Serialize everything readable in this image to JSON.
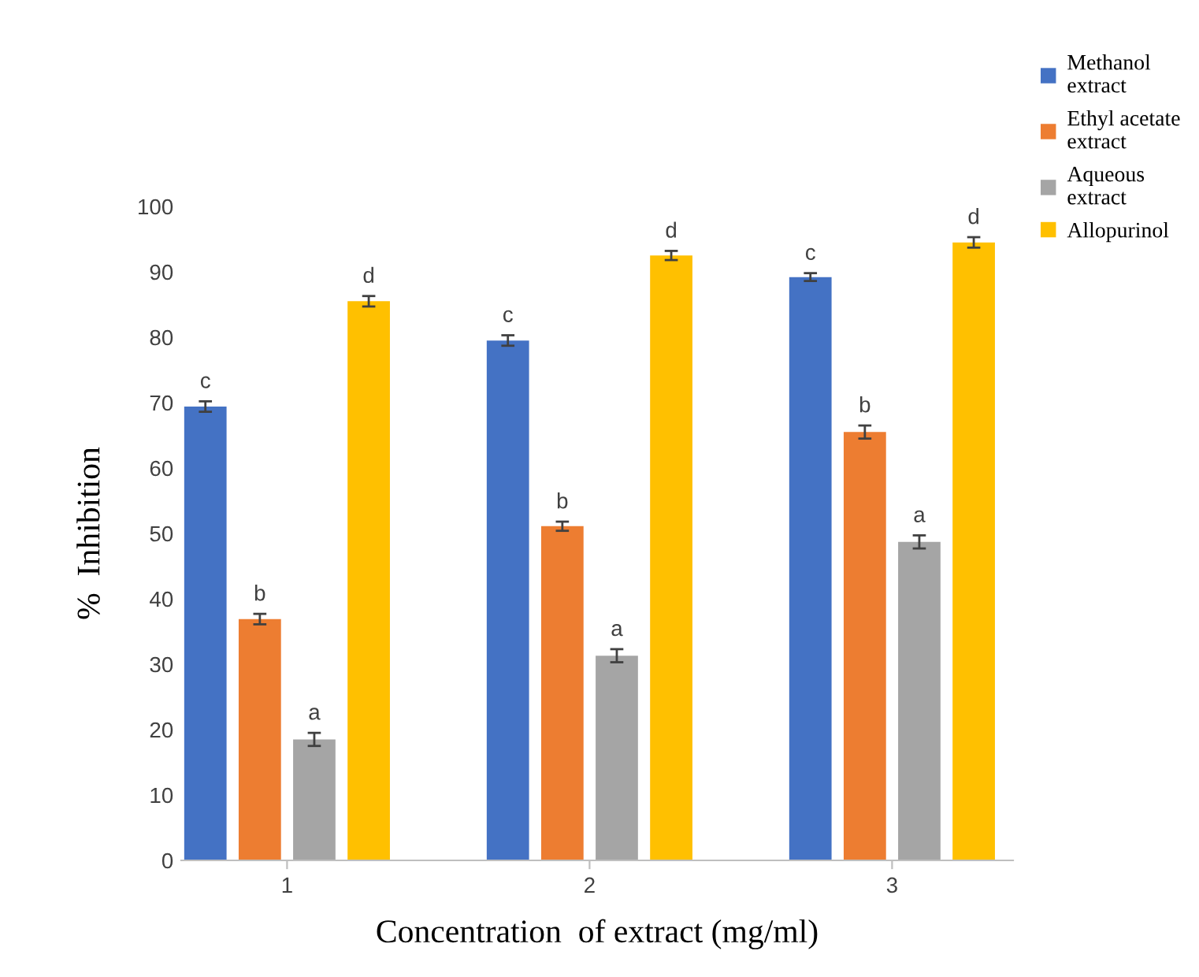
{
  "chart_data": {
    "type": "bar",
    "xlabel": "Concentration  of extract (mg/ml)",
    "ylabel": "%  Inhibition",
    "categories": [
      "1",
      "2",
      "3"
    ],
    "series": [
      {
        "name": "Methanol\nextract",
        "color": "#4472c4",
        "values": [
          69.4,
          79.5,
          89.2
        ],
        "errors": [
          0.8,
          0.8,
          0.6
        ]
      },
      {
        "name": "Ethyl acetate\nextract",
        "color": "#ed7d31",
        "values": [
          36.9,
          51.1,
          65.5
        ],
        "errors": [
          0.8,
          0.7,
          1.0
        ]
      },
      {
        "name": "Aqueous\nextract",
        "color": "#a5a5a5",
        "values": [
          18.5,
          31.3,
          48.7
        ],
        "errors": [
          1.0,
          1.0,
          1.0
        ]
      },
      {
        "name": "Allopurinol",
        "color": "#ffc000",
        "values": [
          85.5,
          92.5,
          94.5
        ],
        "errors": [
          0.8,
          0.7,
          0.8
        ]
      }
    ],
    "ylim": [
      0,
      100
    ],
    "yticks": [
      0,
      10,
      20,
      30,
      40,
      50,
      60,
      70,
      80,
      90,
      100
    ],
    "grid": false,
    "legend": "top right",
    "annotations": [
      "c",
      "b",
      "a",
      "d",
      "c",
      "b",
      "a",
      "d",
      "c",
      "b",
      "a",
      "d"
    ]
  }
}
